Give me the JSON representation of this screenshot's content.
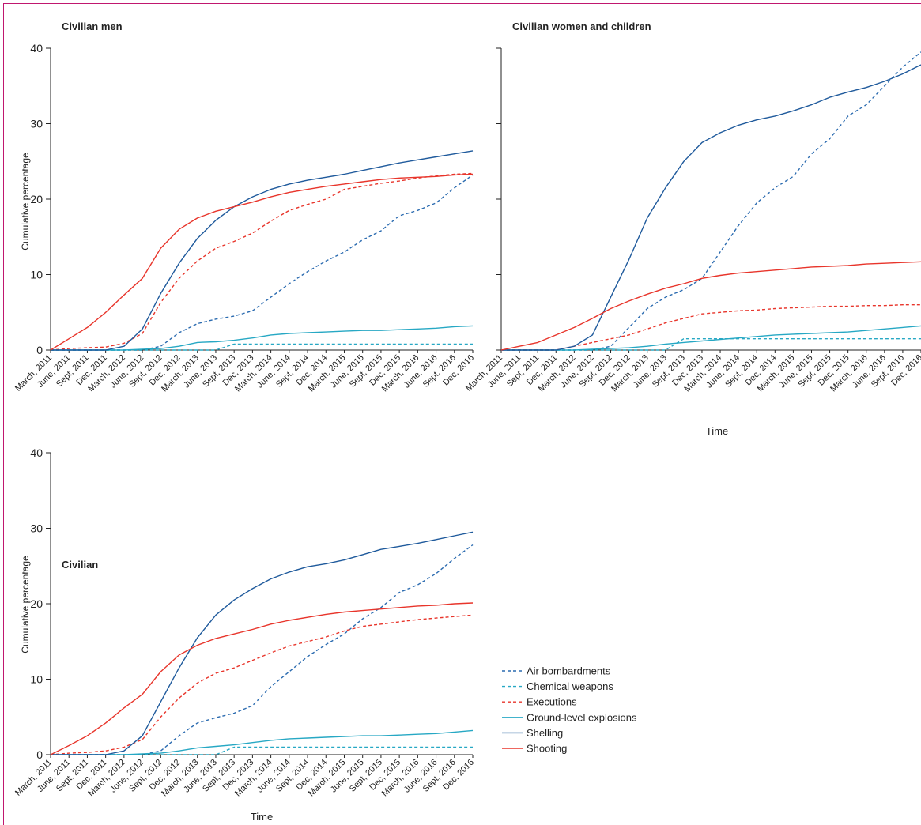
{
  "colors": {
    "air": "#2b6bb0",
    "chemical": "#27a8c4",
    "executions": "#e8352b",
    "ground": "#27a8c4",
    "shelling": "#1f5a9c",
    "shooting": "#e8352b",
    "frame": "#c0176f"
  },
  "legend": [
    {
      "key": "air",
      "label": "Air bombardments",
      "dash": true
    },
    {
      "key": "chemical",
      "label": "Chemical weapons",
      "dash": true
    },
    {
      "key": "executions",
      "label": "Executions",
      "dash": true
    },
    {
      "key": "ground",
      "label": "Ground-level explosions",
      "dash": false
    },
    {
      "key": "shelling",
      "label": "Shelling",
      "dash": false
    },
    {
      "key": "shooting",
      "label": "Shooting",
      "dash": false
    }
  ],
  "chart_data": [
    {
      "type": "line",
      "title": "Civilian men",
      "ylabel": "Cumulative percentage",
      "xlabel": "",
      "ylim": [
        0,
        40
      ],
      "yticks": [
        "0",
        "10",
        "20",
        "30",
        "40"
      ],
      "x": [
        "March, 2011",
        "June, 2011",
        "Sept, 2011",
        "Dec, 2011",
        "March, 2012",
        "June, 2012",
        "Sept, 2012",
        "Dec, 2012",
        "March, 2013",
        "June, 2013",
        "Sept, 2013",
        "Dec, 2013",
        "March, 2014",
        "June, 2014",
        "Sept, 2014",
        "Dec, 2014",
        "March, 2015",
        "June, 2015",
        "Sept, 2015",
        "Dec, 2015",
        "March, 2016",
        "June, 2016",
        "Sept, 2016",
        "Dec, 2016"
      ],
      "series": [
        {
          "name": "Air bombardments",
          "key": "air",
          "values": [
            0,
            0,
            0,
            0,
            0,
            0,
            0.5,
            2.3,
            3.5,
            4.1,
            4.5,
            5.2,
            7.0,
            8.8,
            10.4,
            11.8,
            13.0,
            14.6,
            15.8,
            17.8,
            18.5,
            19.5,
            21.5,
            23.2
          ]
        },
        {
          "name": "Chemical weapons",
          "key": "chemical",
          "values": [
            0,
            0,
            0,
            0,
            0,
            0,
            0,
            0,
            0,
            0,
            0.8,
            0.8,
            0.8,
            0.8,
            0.8,
            0.8,
            0.8,
            0.8,
            0.8,
            0.8,
            0.8,
            0.8,
            0.8,
            0.8
          ]
        },
        {
          "name": "Executions",
          "key": "executions",
          "values": [
            0,
            0.2,
            0.3,
            0.4,
            0.9,
            2.2,
            6.3,
            9.5,
            11.8,
            13.5,
            14.4,
            15.5,
            17.1,
            18.5,
            19.3,
            20.0,
            21.3,
            21.7,
            22.1,
            22.4,
            22.8,
            23.1,
            23.3,
            23.4
          ]
        },
        {
          "name": "Ground-level explosions",
          "key": "ground",
          "values": [
            0,
            0,
            0,
            0,
            0,
            0.1,
            0.2,
            0.5,
            1.0,
            1.1,
            1.3,
            1.6,
            2.0,
            2.2,
            2.3,
            2.4,
            2.5,
            2.6,
            2.6,
            2.7,
            2.8,
            2.9,
            3.1,
            3.2
          ]
        },
        {
          "name": "Shelling",
          "key": "shelling",
          "values": [
            0,
            0,
            0,
            0,
            0.5,
            2.8,
            7.5,
            11.5,
            14.8,
            17.2,
            19.0,
            20.3,
            21.3,
            22.0,
            22.5,
            22.9,
            23.3,
            23.8,
            24.3,
            24.8,
            25.2,
            25.6,
            26.0,
            26.4
          ]
        },
        {
          "name": "Shooting",
          "key": "shooting",
          "values": [
            0,
            1.5,
            3.0,
            5.0,
            7.3,
            9.5,
            13.5,
            16.0,
            17.5,
            18.4,
            19.0,
            19.6,
            20.3,
            20.9,
            21.3,
            21.7,
            22.0,
            22.3,
            22.6,
            22.8,
            22.9,
            23.0,
            23.2,
            23.3
          ]
        }
      ]
    },
    {
      "type": "line",
      "title": "Civilian women and children",
      "ylabel": "",
      "xlabel": "Time",
      "ylim": [
        0,
        40
      ],
      "yticks": [],
      "x": [
        "March, 2011",
        "June, 2011",
        "Sept, 2011",
        "Dec, 2011",
        "March, 2012",
        "June, 2012",
        "Sept, 2012",
        "Dec, 2012",
        "March, 2013",
        "June, 2013",
        "Sept, 2013",
        "Dec, 2013",
        "March, 2014",
        "June, 2014",
        "Sept, 2014",
        "Dec, 2014",
        "March, 2015",
        "June, 2015",
        "Sept, 2015",
        "Dec, 2015",
        "March, 2016",
        "June, 2016",
        "Sept, 2016",
        "Dec, 2016"
      ],
      "series": [
        {
          "name": "Air bombardments",
          "key": "air",
          "values": [
            0,
            0,
            0,
            0,
            0,
            0,
            0.5,
            3.0,
            5.5,
            7.0,
            8.0,
            9.5,
            13.0,
            16.5,
            19.5,
            21.5,
            23.0,
            26.0,
            28.0,
            31.0,
            32.5,
            35.0,
            37.5,
            39.5
          ]
        },
        {
          "name": "Chemical weapons",
          "key": "chemical",
          "values": [
            0,
            0,
            0,
            0,
            0,
            0,
            0,
            0,
            0,
            0,
            1.5,
            1.5,
            1.5,
            1.5,
            1.5,
            1.5,
            1.5,
            1.5,
            1.5,
            1.5,
            1.5,
            1.5,
            1.5,
            1.5
          ]
        },
        {
          "name": "Executions",
          "key": "executions",
          "values": [
            0,
            0,
            0,
            0,
            0.5,
            1.0,
            1.5,
            2.0,
            2.8,
            3.6,
            4.2,
            4.8,
            5.0,
            5.2,
            5.3,
            5.5,
            5.6,
            5.7,
            5.8,
            5.8,
            5.9,
            5.9,
            6.0,
            6.0
          ]
        },
        {
          "name": "Ground-level explosions",
          "key": "ground",
          "values": [
            0,
            0,
            0,
            0,
            0,
            0.1,
            0.2,
            0.3,
            0.5,
            0.8,
            1.0,
            1.2,
            1.4,
            1.6,
            1.8,
            2.0,
            2.1,
            2.2,
            2.3,
            2.4,
            2.6,
            2.8,
            3.0,
            3.2
          ]
        },
        {
          "name": "Shelling",
          "key": "shelling",
          "values": [
            0,
            0,
            0,
            0,
            0.5,
            2.0,
            7.0,
            12.0,
            17.5,
            21.5,
            25.0,
            27.5,
            28.8,
            29.8,
            30.5,
            31.0,
            31.7,
            32.5,
            33.5,
            34.2,
            34.8,
            35.6,
            36.6,
            37.8
          ]
        },
        {
          "name": "Shooting",
          "key": "shooting",
          "values": [
            0,
            0.5,
            1.0,
            2.0,
            3.0,
            4.2,
            5.5,
            6.5,
            7.4,
            8.2,
            8.8,
            9.5,
            9.9,
            10.2,
            10.4,
            10.6,
            10.8,
            11.0,
            11.1,
            11.2,
            11.4,
            11.5,
            11.6,
            11.7
          ]
        }
      ]
    },
    {
      "type": "line",
      "title": "Civilian",
      "ylabel": "Cumulative percentage",
      "xlabel": "Time",
      "ylim": [
        0,
        40
      ],
      "yticks": [
        "0",
        "10",
        "20",
        "30",
        "40"
      ],
      "x": [
        "March, 2011",
        "June, 2011",
        "Sept, 2011",
        "Dec, 2011",
        "March, 2012",
        "June, 2012",
        "Sept, 2012",
        "Dec, 2012",
        "March, 2013",
        "June, 2013",
        "Sept, 2013",
        "Dec, 2013",
        "March, 2014",
        "June, 2014",
        "Sept, 2014",
        "Dec, 2014",
        "March, 2015",
        "June, 2015",
        "Sept, 2015",
        "Dec, 2015",
        "March, 2016",
        "June, 2016",
        "Sept, 2016",
        "Dec, 2016"
      ],
      "series": [
        {
          "name": "Air bombardments",
          "key": "air",
          "values": [
            0,
            0,
            0,
            0,
            0,
            0,
            0.5,
            2.5,
            4.2,
            4.9,
            5.5,
            6.5,
            9.0,
            11.0,
            13.0,
            14.6,
            16.0,
            18.0,
            19.5,
            21.5,
            22.5,
            24.0,
            26.0,
            27.8
          ]
        },
        {
          "name": "Chemical weapons",
          "key": "chemical",
          "values": [
            0,
            0,
            0,
            0,
            0,
            0,
            0,
            0,
            0,
            0,
            1.0,
            1.0,
            1.0,
            1.0,
            1.0,
            1.0,
            1.0,
            1.0,
            1.0,
            1.0,
            1.0,
            1.0,
            1.0,
            1.0
          ]
        },
        {
          "name": "Executions",
          "key": "executions",
          "values": [
            0,
            0.2,
            0.3,
            0.5,
            1.0,
            2.0,
            5.0,
            7.5,
            9.5,
            10.8,
            11.5,
            12.5,
            13.5,
            14.4,
            15.0,
            15.6,
            16.4,
            17.0,
            17.3,
            17.6,
            17.9,
            18.1,
            18.3,
            18.5
          ]
        },
        {
          "name": "Ground-level explosions",
          "key": "ground",
          "values": [
            0,
            0,
            0,
            0,
            0,
            0.1,
            0.2,
            0.5,
            0.9,
            1.1,
            1.3,
            1.6,
            1.9,
            2.1,
            2.2,
            2.3,
            2.4,
            2.5,
            2.5,
            2.6,
            2.7,
            2.8,
            3.0,
            3.2
          ]
        },
        {
          "name": "Shelling",
          "key": "shelling",
          "values": [
            0,
            0,
            0,
            0,
            0.5,
            2.5,
            7.0,
            11.5,
            15.5,
            18.5,
            20.5,
            22.0,
            23.3,
            24.2,
            24.9,
            25.3,
            25.8,
            26.5,
            27.2,
            27.6,
            28.0,
            28.5,
            29.0,
            29.5
          ]
        },
        {
          "name": "Shooting",
          "key": "shooting",
          "values": [
            0,
            1.2,
            2.5,
            4.2,
            6.2,
            8.0,
            11.0,
            13.2,
            14.5,
            15.4,
            16.0,
            16.6,
            17.3,
            17.8,
            18.2,
            18.6,
            18.9,
            19.1,
            19.3,
            19.5,
            19.7,
            19.8,
            20.0,
            20.1
          ]
        }
      ]
    }
  ]
}
